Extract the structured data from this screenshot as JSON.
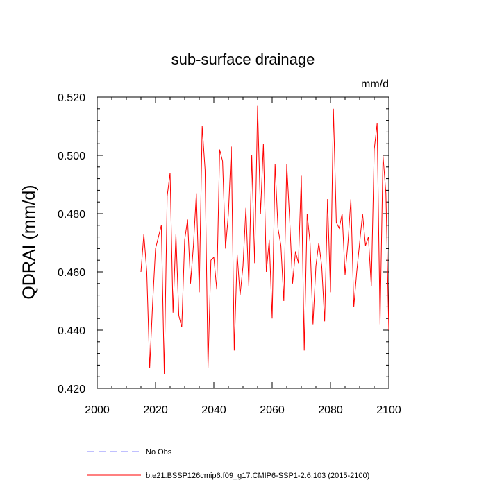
{
  "chart_data": {
    "type": "line",
    "title": "sub-surface drainage",
    "units_label": "mm/d",
    "ylabel": "QDRAI  (mm/d)",
    "xlabel": "",
    "xlim": [
      2000,
      2100
    ],
    "ylim": [
      0.42,
      0.52
    ],
    "xticks": [
      2000,
      2020,
      2040,
      2060,
      2080,
      2100
    ],
    "xtick_labels": [
      "2000",
      "2020",
      "2040",
      "2060",
      "2080",
      "2100"
    ],
    "yticks": [
      0.42,
      0.44,
      0.46,
      0.48,
      0.5,
      0.52
    ],
    "ytick_labels": [
      "0.420",
      "0.440",
      "0.460",
      "0.480",
      "0.500",
      "0.520"
    ],
    "grid": false,
    "series": [
      {
        "name": "b.e21.BSSP126cmip6.f09_g17.CMIP6-SSP1-2.6.103 (2015-2100)",
        "color": "#ff0000",
        "style": "solid",
        "x": [
          2015,
          2016,
          2017,
          2018,
          2019,
          2020,
          2021,
          2022,
          2023,
          2024,
          2025,
          2026,
          2027,
          2028,
          2029,
          2030,
          2031,
          2032,
          2033,
          2034,
          2035,
          2036,
          2037,
          2038,
          2039,
          2040,
          2041,
          2042,
          2043,
          2044,
          2045,
          2046,
          2047,
          2048,
          2049,
          2050,
          2051,
          2052,
          2053,
          2054,
          2055,
          2056,
          2057,
          2058,
          2059,
          2060,
          2061,
          2062,
          2063,
          2064,
          2065,
          2066,
          2067,
          2068,
          2069,
          2070,
          2071,
          2072,
          2073,
          2074,
          2075,
          2076,
          2077,
          2078,
          2079,
          2080,
          2081,
          2082,
          2083,
          2084,
          2085,
          2086,
          2087,
          2088,
          2089,
          2090,
          2091,
          2092,
          2093,
          2094,
          2095,
          2096,
          2097,
          2098,
          2099,
          2100
        ],
        "values": [
          0.46,
          0.473,
          0.46,
          0.427,
          0.449,
          0.468,
          0.472,
          0.476,
          0.425,
          0.486,
          0.494,
          0.446,
          0.473,
          0.445,
          0.441,
          0.471,
          0.478,
          0.456,
          0.469,
          0.487,
          0.453,
          0.51,
          0.495,
          0.427,
          0.464,
          0.465,
          0.454,
          0.502,
          0.498,
          0.468,
          0.48,
          0.503,
          0.433,
          0.466,
          0.452,
          0.462,
          0.482,
          0.455,
          0.5,
          0.463,
          0.517,
          0.48,
          0.504,
          0.46,
          0.471,
          0.444,
          0.497,
          0.475,
          0.469,
          0.45,
          0.497,
          0.478,
          0.456,
          0.467,
          0.463,
          0.493,
          0.433,
          0.48,
          0.47,
          0.442,
          0.462,
          0.47,
          0.462,
          0.443,
          0.485,
          0.453,
          0.516,
          0.477,
          0.475,
          0.48,
          0.459,
          0.47,
          0.485,
          0.448,
          0.46,
          0.47,
          0.48,
          0.469,
          0.472,
          0.455,
          0.502,
          0.511,
          0.442,
          0.5,
          0.487,
          0.44
        ]
      },
      {
        "name": "No Obs",
        "color": "#8080ff",
        "style": "dashed",
        "x": [],
        "values": []
      }
    ],
    "legend_position": "bottom-left"
  }
}
